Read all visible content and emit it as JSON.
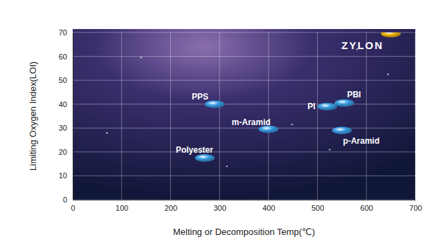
{
  "chart_data": {
    "type": "scatter",
    "x_label": "Melting or Decomposition Temp(℃)",
    "y_label": "Limiting Oxygen Index(LOI)",
    "x": [
      270,
      290,
      400,
      520,
      555,
      550,
      650
    ],
    "values": [
      17.5,
      40,
      29.5,
      39,
      40.5,
      29,
      69.5
    ],
    "point_labels": [
      "Polyester",
      "PPS",
      "m-Aramid",
      "PI",
      "PBI",
      "p-Aramid",
      "ZYLON"
    ],
    "colors": [
      "#3a9fe6",
      "#3a9fe6",
      "#3a9fe6",
      "#3a9fe6",
      "#3a9fe6",
      "#3a9fe6",
      "#f2b705"
    ],
    "xlim": [
      0,
      700
    ],
    "ylim": [
      0,
      70
    ],
    "xticks": [
      0,
      100,
      200,
      300,
      400,
      500,
      600,
      700
    ],
    "yticks": [
      0,
      10,
      20,
      30,
      40,
      50,
      60,
      70
    ],
    "grid": true,
    "marker": "ellipse"
  }
}
